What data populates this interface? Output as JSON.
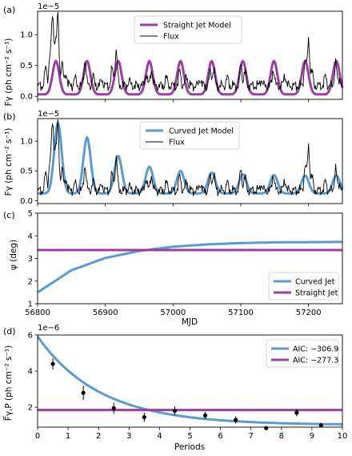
{
  "figure": {
    "colors": {
      "straight": "#9b3fa3",
      "curved": "#5b9bd0",
      "flux": "#000000"
    }
  },
  "chart_data": [
    {
      "panel": "(a)",
      "type": "line",
      "xlim": [
        56800,
        57250
      ],
      "ylim": [
        -0.05,
        1.38
      ],
      "y_multiplier": "1e−5",
      "ylabel": "Fγ (ph cm⁻² s⁻¹)",
      "yticks": [
        0.0,
        0.5,
        1.0
      ],
      "ytick_labels": [
        "0.0",
        "0.5",
        "1.0"
      ],
      "legend": {
        "position": "upper-center",
        "entries": [
          "Straight Jet Model",
          "Flux"
        ]
      },
      "model": {
        "name": "Straight Jet Model",
        "baseline": 0.03,
        "peak": 0.57,
        "peaks_x": [
          56827,
          56873,
          56919,
          56965,
          57011,
          57057,
          57103,
          57149,
          57195,
          57241
        ],
        "width": 5
      },
      "flux": {
        "name": "Flux",
        "baseline": 0.17,
        "spikes": [
          {
            "x": 56812,
            "y": 0.46
          },
          {
            "x": 56818,
            "y": 0.62
          },
          {
            "x": 56822,
            "y": 1.28
          },
          {
            "x": 56826,
            "y": 0.82
          },
          {
            "x": 56830,
            "y": 1.29
          },
          {
            "x": 56836,
            "y": 0.55
          },
          {
            "x": 56842,
            "y": 0.38
          },
          {
            "x": 56855,
            "y": 0.3
          },
          {
            "x": 56870,
            "y": 0.6
          },
          {
            "x": 56882,
            "y": 0.32
          },
          {
            "x": 56895,
            "y": 0.28
          },
          {
            "x": 56910,
            "y": 0.44
          },
          {
            "x": 56916,
            "y": 0.75
          },
          {
            "x": 56935,
            "y": 0.25
          },
          {
            "x": 56960,
            "y": 0.38
          },
          {
            "x": 56968,
            "y": 0.43
          },
          {
            "x": 56990,
            "y": 0.3
          },
          {
            "x": 57010,
            "y": 0.42
          },
          {
            "x": 57020,
            "y": 0.33
          },
          {
            "x": 57040,
            "y": 0.29
          },
          {
            "x": 57055,
            "y": 0.4
          },
          {
            "x": 57060,
            "y": 0.45
          },
          {
            "x": 57080,
            "y": 0.3
          },
          {
            "x": 57100,
            "y": 0.52
          },
          {
            "x": 57106,
            "y": 0.4
          },
          {
            "x": 57130,
            "y": 0.28
          },
          {
            "x": 57148,
            "y": 0.45
          },
          {
            "x": 57165,
            "y": 0.35
          },
          {
            "x": 57195,
            "y": 0.6
          },
          {
            "x": 57200,
            "y": 0.92
          },
          {
            "x": 57205,
            "y": 0.4
          },
          {
            "x": 57225,
            "y": 0.32
          },
          {
            "x": 57240,
            "y": 0.55
          },
          {
            "x": 57246,
            "y": 0.3
          }
        ]
      }
    },
    {
      "panel": "(b)",
      "type": "line",
      "xlim": [
        56800,
        57250
      ],
      "ylim": [
        -0.05,
        1.38
      ],
      "y_multiplier": "1e−5",
      "ylabel": "Fγ (ph cm⁻² s⁻¹)",
      "yticks": [
        0.0,
        0.5,
        1.0
      ],
      "ytick_labels": [
        "0.0",
        "0.5",
        "1.0"
      ],
      "legend": {
        "position": "upper-center",
        "entries": [
          "Curved Jet Model",
          "Flux"
        ]
      },
      "model": {
        "name": "Curved Jet Model",
        "baseline": 0.12,
        "peaks": [
          {
            "x": 56830,
            "y": 1.3
          },
          {
            "x": 56873,
            "y": 1.06
          },
          {
            "x": 56919,
            "y": 0.75
          },
          {
            "x": 56965,
            "y": 0.57
          },
          {
            "x": 57011,
            "y": 0.5
          },
          {
            "x": 57057,
            "y": 0.47
          },
          {
            "x": 57103,
            "y": 0.44
          },
          {
            "x": 57149,
            "y": 0.43
          },
          {
            "x": 57195,
            "y": 0.42
          },
          {
            "x": 57241,
            "y": 0.42
          }
        ],
        "width": 5.5
      }
    },
    {
      "panel": "(c)",
      "type": "line",
      "xlim": [
        56800,
        57250
      ],
      "ylim": [
        1,
        5
      ],
      "xlabel": "MJD",
      "ylabel": "ψ (deg)",
      "xticks": [
        56800,
        56900,
        57000,
        57100,
        57200
      ],
      "xtick_labels": [
        "56800",
        "56900",
        "57000",
        "57100",
        "57200"
      ],
      "yticks": [
        1,
        2,
        3,
        4,
        5
      ],
      "ytick_labels": [
        "1",
        "2",
        "3",
        "4",
        "5"
      ],
      "legend": {
        "position": "lower-right",
        "entries": [
          "Curved Jet",
          "Straight Jet"
        ]
      },
      "series": [
        {
          "name": "Curved Jet",
          "x": [
            56800,
            56850,
            56900,
            56950,
            57000,
            57050,
            57100,
            57150,
            57200,
            57250
          ],
          "y": [
            1.5,
            2.48,
            3.02,
            3.33,
            3.52,
            3.62,
            3.68,
            3.71,
            3.72,
            3.73
          ]
        },
        {
          "name": "Straight Jet",
          "x": [
            56800,
            57250
          ],
          "y": [
            3.37,
            3.37
          ]
        }
      ]
    },
    {
      "panel": "(d)",
      "type": "scatter",
      "xlim": [
        0,
        10
      ],
      "ylim": [
        0.9,
        6.0
      ],
      "y_multiplier": "1e−6",
      "xlabel": "Periods",
      "ylabel": "F̅γ,P (ph cm⁻² s⁻¹)",
      "xticks": [
        0,
        1,
        2,
        3,
        4,
        5,
        6,
        7,
        8,
        9,
        10
      ],
      "xtick_labels": [
        "0",
        "1",
        "2",
        "3",
        "4",
        "5",
        "6",
        "7",
        "8",
        "9",
        "10"
      ],
      "yticks": [
        2,
        4,
        6
      ],
      "ytick_labels": [
        "2",
        "4",
        "6"
      ],
      "legend": {
        "position": "upper-right",
        "entries": [
          "AIC: −306.9",
          "AIC: −277.3"
        ]
      },
      "points": [
        {
          "x": 0.5,
          "y": 4.4,
          "err": 0.3
        },
        {
          "x": 1.5,
          "y": 2.8,
          "err": 0.4
        },
        {
          "x": 2.5,
          "y": 1.95,
          "err": 0.3
        },
        {
          "x": 3.5,
          "y": 1.45,
          "err": 0.25
        },
        {
          "x": 4.5,
          "y": 1.8,
          "err": 0.25
        },
        {
          "x": 5.5,
          "y": 1.55,
          "err": 0.2
        },
        {
          "x": 6.5,
          "y": 1.3,
          "err": 0.2
        },
        {
          "x": 7.5,
          "y": 0.85,
          "err": 0.1
        },
        {
          "x": 8.5,
          "y": 1.7,
          "err": 0.2
        },
        {
          "x": 9.3,
          "y": 1.0,
          "err": 0.1
        }
      ],
      "series": [
        {
          "name": "AIC: −306.9",
          "x": [
            0,
            1,
            2,
            3,
            4,
            5,
            6,
            7,
            8,
            9,
            10
          ],
          "y": [
            5.9,
            3.96,
            2.79,
            2.08,
            1.65,
            1.39,
            1.24,
            1.14,
            1.08,
            1.05,
            1.03
          ]
        },
        {
          "name": "AIC: −277.3",
          "x": [
            0,
            10
          ],
          "y": [
            1.85,
            1.85
          ]
        }
      ]
    }
  ]
}
